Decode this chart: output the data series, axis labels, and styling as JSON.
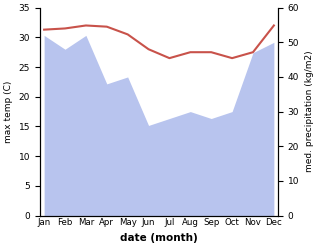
{
  "months": [
    "Jan",
    "Feb",
    "Mar",
    "Apr",
    "May",
    "Jun",
    "Jul",
    "Aug",
    "Sep",
    "Oct",
    "Nov",
    "Dec"
  ],
  "temperature": [
    31.3,
    31.5,
    32.0,
    31.8,
    30.5,
    28.0,
    26.5,
    27.5,
    27.5,
    26.5,
    27.5,
    32.0
  ],
  "precipitation": [
    52,
    48,
    52,
    38,
    40,
    26,
    28,
    30,
    28,
    30,
    47,
    50
  ],
  "temp_color": "#c8524a",
  "precip_color": "#b8c4ee",
  "temp_ylim": [
    0,
    35
  ],
  "precip_ylim": [
    0,
    60
  ],
  "temp_yticks": [
    0,
    5,
    10,
    15,
    20,
    25,
    30,
    35
  ],
  "precip_yticks": [
    0,
    10,
    20,
    30,
    40,
    50,
    60
  ],
  "xlabel": "date (month)",
  "ylabel_left": "max temp (C)",
  "ylabel_right": "med. precipitation (kg/m2)",
  "fig_width": 3.18,
  "fig_height": 2.47,
  "dpi": 100
}
